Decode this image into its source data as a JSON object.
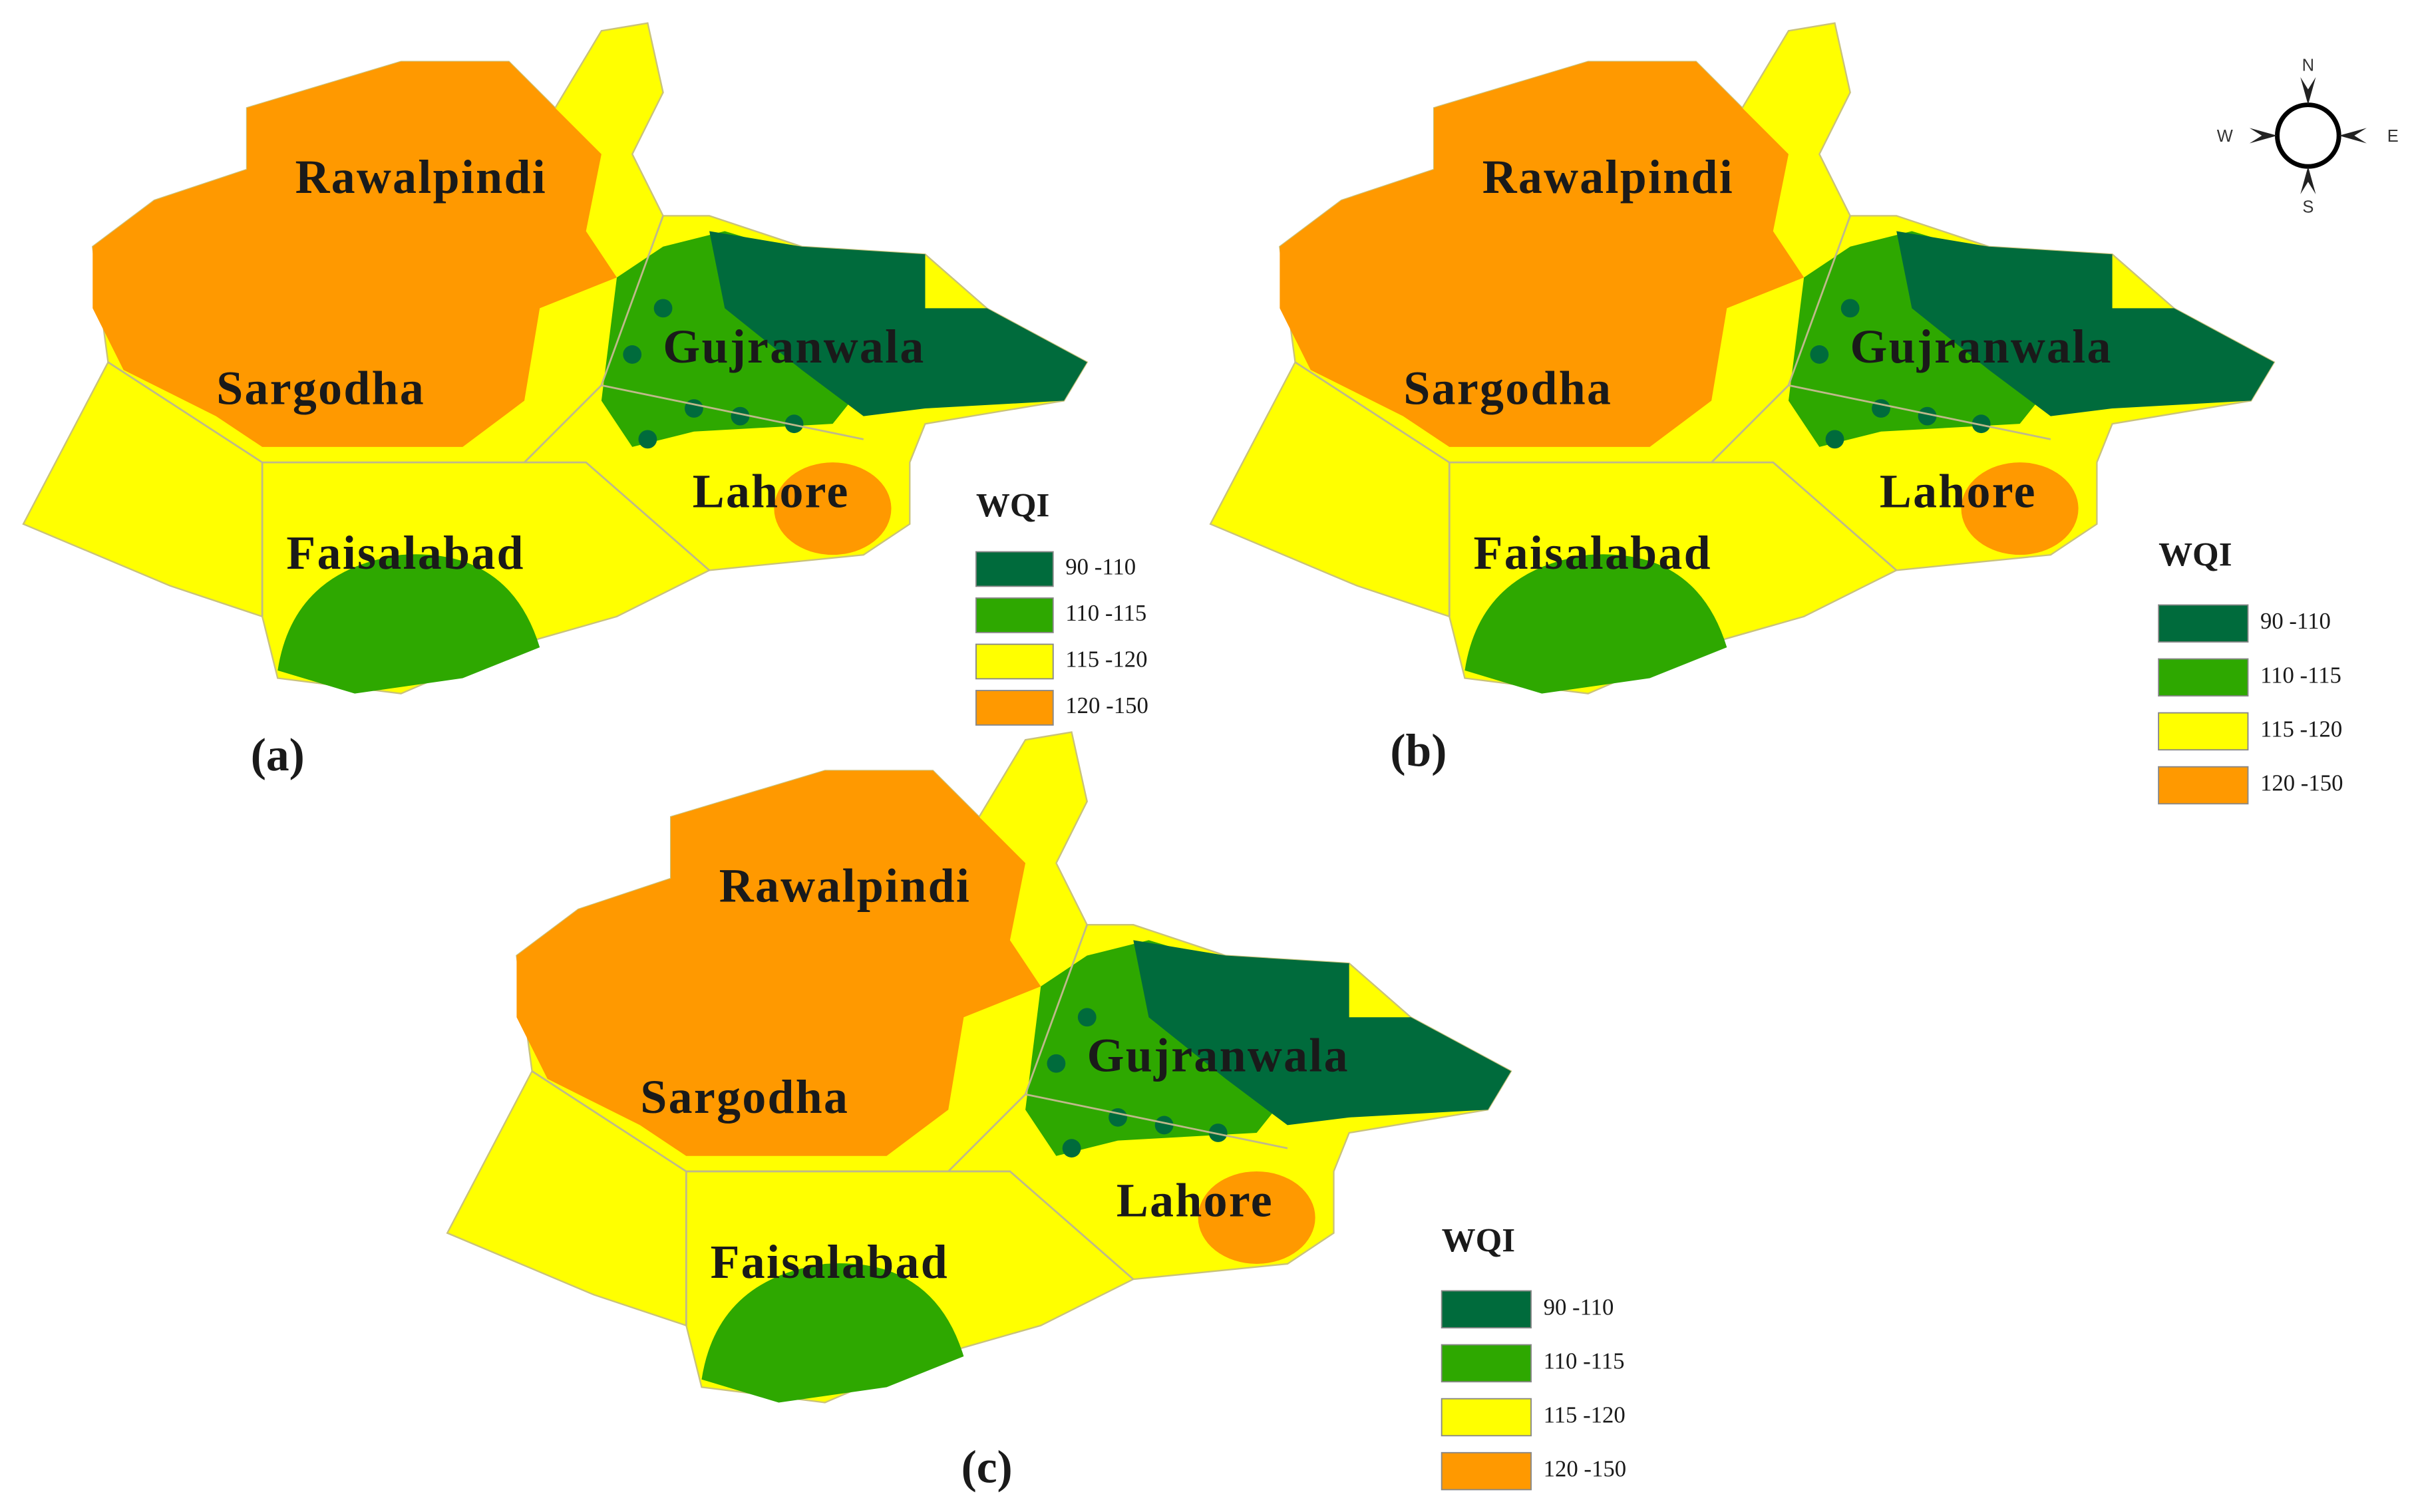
{
  "panels": [
    {
      "label": "(a)",
      "districts": [
        "Rawalpindi",
        "Sargodha",
        "Gujranwala",
        "Lahore",
        "Faisalabad"
      ],
      "legend": {
        "title": "WQI",
        "items": [
          "90 -110",
          "110 -115",
          "115 -120",
          "120 -150"
        ]
      }
    },
    {
      "label": "(b)",
      "districts": [
        "Rawalpindi",
        "Sargodha",
        "Gujranwala",
        "Lahore",
        "Faisalabad"
      ],
      "legend": {
        "title": "WQI",
        "items": [
          "90 -110",
          "110 -115",
          "115 -120",
          "120 -150"
        ]
      }
    },
    {
      "label": "(c)",
      "districts": [
        "Rawalpindi",
        "Sargodha",
        "Gujranwala",
        "Lahore",
        "Faisalabad"
      ],
      "legend": {
        "title": "WQI",
        "items": [
          "90 -110",
          "110 -115",
          "115 -120",
          "120 -150"
        ]
      }
    }
  ],
  "legend_colors": [
    "#006b3c",
    "#2ea800",
    "#ffff00",
    "#ff9900"
  ],
  "compass": {
    "n": "N",
    "e": "E",
    "s": "S",
    "w": "W"
  }
}
